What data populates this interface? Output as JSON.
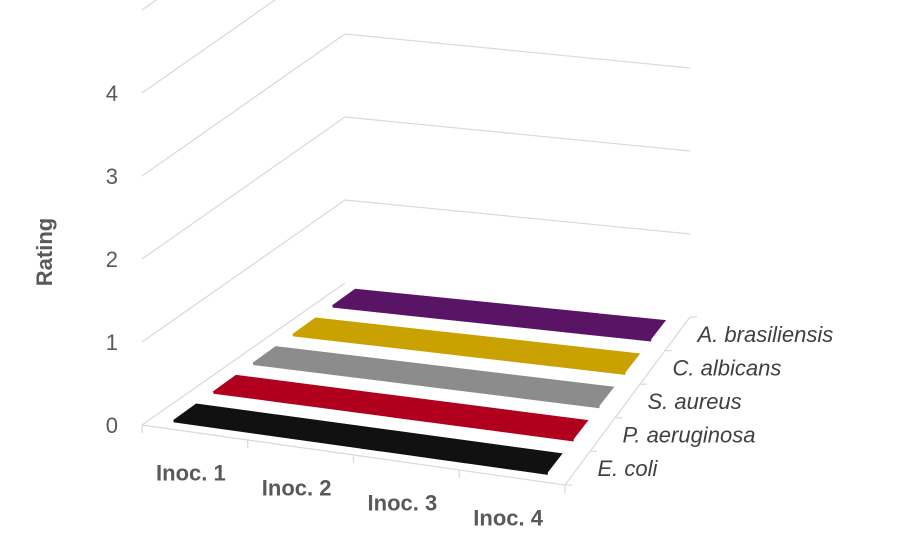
{
  "chart_data": {
    "type": "bar",
    "categories": [
      "Inoc. 1",
      "Inoc. 2",
      "Inoc. 3",
      "Inoc. 4"
    ],
    "series": [
      {
        "name": "E. coli",
        "values": [
          0,
          0,
          0,
          0
        ],
        "color": "#111111"
      },
      {
        "name": "P. aeruginosa",
        "values": [
          0,
          0,
          0,
          0
        ],
        "color": "#b0001e"
      },
      {
        "name": "S. aureus",
        "values": [
          0,
          0,
          0,
          0
        ],
        "color": "#8c8c8c"
      },
      {
        "name": "C. albicans",
        "values": [
          0,
          0,
          0,
          0
        ],
        "color": "#c9a100"
      },
      {
        "name": "A. brasiliensis",
        "values": [
          0,
          0,
          0,
          0
        ],
        "color": "#5a1466"
      }
    ],
    "yticks": [
      "0",
      "1",
      "2",
      "3",
      "4"
    ],
    "ylabel": "Rating",
    "ylim": [
      0,
      5
    ],
    "grid": true,
    "style": "3d"
  }
}
